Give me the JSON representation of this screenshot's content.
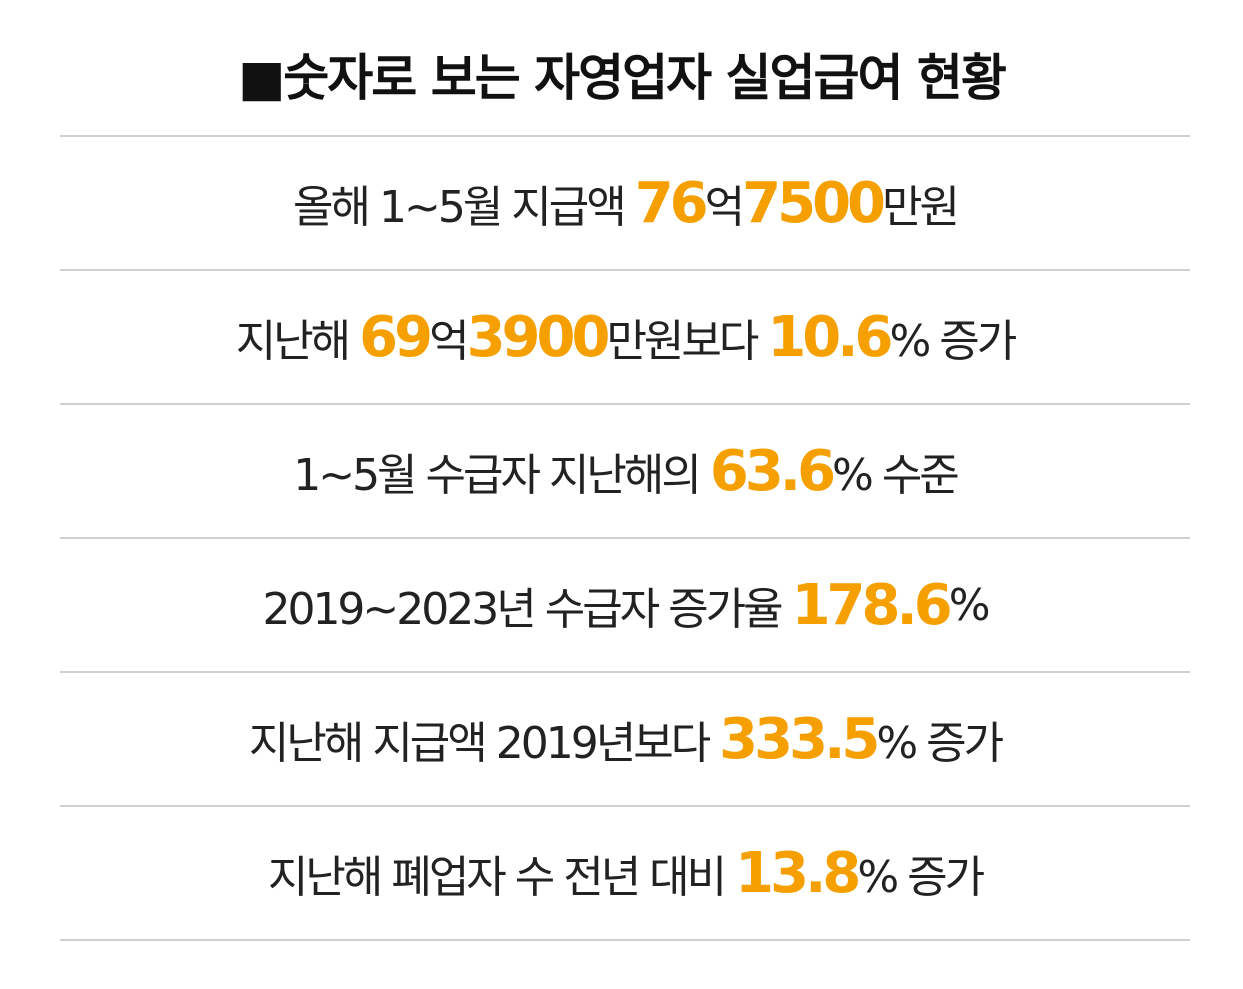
{
  "header": {
    "title": "■숫자로 보는 자영업자 실업급여 현황"
  },
  "rows": [
    {
      "segments": [
        {
          "text": "올해 1~5월 지급액 "
        },
        {
          "text": "76",
          "color": "#f5a000"
        },
        {
          "text": "억"
        },
        {
          "text": "7500",
          "color": "#f5a000"
        },
        {
          "text": "만원"
        }
      ]
    },
    {
      "segments": [
        {
          "text": "지난해 "
        },
        {
          "text": "69",
          "color": "#f5a000"
        },
        {
          "text": "억"
        },
        {
          "text": "3900",
          "color": "#f5a000"
        },
        {
          "text": "만원보다 "
        },
        {
          "text": "10.6",
          "color": "#f5a000"
        },
        {
          "text": "% 증가"
        }
      ]
    },
    {
      "segments": [
        {
          "text": "1~5월 수급자 지난해의 "
        },
        {
          "text": "63.6",
          "color": "#f5a000"
        },
        {
          "text": "% 수준"
        }
      ]
    },
    {
      "segments": [
        {
          "text": "2019~2023년 수급자 증가율 "
        },
        {
          "text": "178.6",
          "color": "#f5a000"
        },
        {
          "text": "%"
        }
      ]
    },
    {
      "segments": [
        {
          "text": "지난해 지급액 2019년보다 "
        },
        {
          "text": "333.5",
          "color": "#f5a000"
        },
        {
          "text": "% 증가"
        }
      ]
    },
    {
      "segments": [
        {
          "text": "지난해 폐업자 수 전년 대비 "
        },
        {
          "text": "13.8",
          "color": "#f5a000"
        },
        {
          "text": "% 증가"
        }
      ]
    }
  ]
}
